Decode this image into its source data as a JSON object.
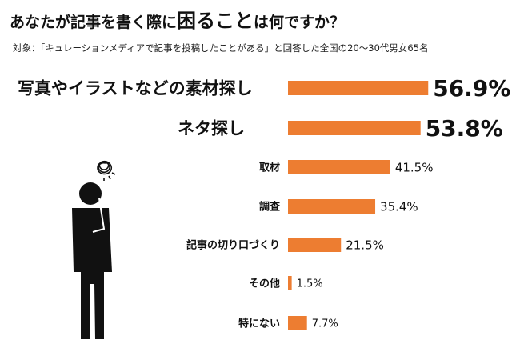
{
  "title": {
    "pre": "あなたが記事を書く際に",
    "emph": "困ること",
    "post": "は何ですか？"
  },
  "subtitle": "対象：「キュレーションメディアで記事を投稿したことがある」と回答した全国の20〜30代男女65名",
  "colors": {
    "bar": "#ed7d31",
    "text": "#111111"
  },
  "icons": {
    "person": "thinking-person-icon"
  },
  "chart_data": {
    "type": "bar",
    "orientation": "horizontal",
    "categories": [
      "写真やイラストなどの素材探し",
      "ネタ探し",
      "取材",
      "調査",
      "記事の切り口づくり",
      "その他",
      "特にない"
    ],
    "values": [
      56.9,
      53.8,
      41.5,
      35.4,
      21.5,
      1.5,
      7.7
    ],
    "value_labels": [
      "56.9%",
      "53.8%",
      "41.5%",
      "35.4%",
      "21.5%",
      "1.5%",
      "7.7%"
    ],
    "unit": "%"
  }
}
